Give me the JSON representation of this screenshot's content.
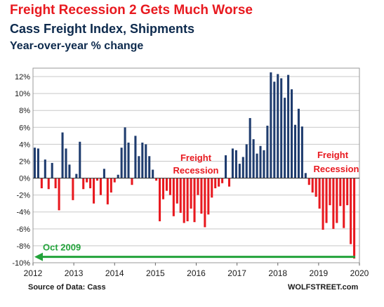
{
  "header": {
    "title": "Freight Recession 2 Gets Much Worse",
    "subtitle": "Cass Freight Index, Shipments",
    "subtitle2": "Year-over-year % change"
  },
  "footer": {
    "source": "Source of Data: Cass",
    "brand": "WOLFSTREET.com"
  },
  "colors": {
    "positive": "#1f3c6e",
    "negative": "#e8191f",
    "annotation_red": "#e8191f",
    "annotation_green": "#22a33a",
    "grid": "#c8c8c8"
  },
  "chart_data": {
    "type": "bar",
    "title": "Freight Recession 2 Gets Much Worse",
    "subtitle": "Cass Freight Index, Shipments",
    "ylabel": "Year-over-year % change",
    "ylim": [
      -10,
      13
    ],
    "yticks": [
      12,
      10,
      8,
      6,
      4,
      2,
      0,
      -2,
      -4,
      -6,
      -8,
      -10
    ],
    "ytick_labels": [
      "12%",
      "10%",
      "8%",
      "6%",
      "4%",
      "2%",
      "0%",
      "-2%",
      "-4%",
      "-6%",
      "-8%",
      "-10%"
    ],
    "xticks": [
      "2012",
      "2013",
      "2014",
      "2015",
      "2016",
      "2017",
      "2018",
      "2019",
      "2020"
    ],
    "grid": true,
    "x_start": "2012-01",
    "x_end": "2020-01",
    "values": [
      3.6,
      3.5,
      -1.2,
      2.2,
      -1.3,
      1.8,
      -1.2,
      -3.8,
      5.4,
      3.5,
      1.6,
      -2.6,
      0.5,
      4.3,
      -1.3,
      -0.5,
      -1.2,
      -3.0,
      -0.3,
      -2.0,
      1.1,
      -3.1,
      -1.7,
      -0.5,
      0.4,
      3.6,
      6.0,
      4.2,
      -0.8,
      5.0,
      2.6,
      4.2,
      4.0,
      2.6,
      1.0,
      -0.3,
      -5.1,
      -2.5,
      -1.5,
      -2.0,
      -4.5,
      -3.0,
      -4.1,
      -5.3,
      -5.1,
      -3.6,
      -5.2,
      -2.0,
      -4.2,
      -5.8,
      -4.3,
      -2.3,
      -1.2,
      -1.0,
      -0.6,
      2.7,
      -1.0,
      3.5,
      3.3,
      1.7,
      2.5,
      4.0,
      7.1,
      4.6,
      2.9,
      3.8,
      3.3,
      6.2,
      12.5,
      11.4,
      12.3,
      11.8,
      9.5,
      12.2,
      10.5,
      6.3,
      8.2,
      6.1,
      0.6,
      -0.8,
      -1.7,
      -2.2,
      -3.6,
      -6.1,
      -5.3,
      -3.2,
      -6.0,
      -5.3,
      -3.3,
      -5.9,
      -3.2,
      -7.8,
      -9.5
    ],
    "annotations": [
      {
        "text": "Freight",
        "color": "#e8191f"
      },
      {
        "text": "Recession",
        "color": "#e8191f"
      },
      {
        "text": "Freight",
        "color": "#e8191f"
      },
      {
        "text": "Recession",
        "color": "#e8191f"
      },
      {
        "text": "Oct 2009",
        "color": "#22a33a"
      }
    ],
    "reference_line": {
      "value": -9.3,
      "label": "Oct 2009"
    }
  }
}
